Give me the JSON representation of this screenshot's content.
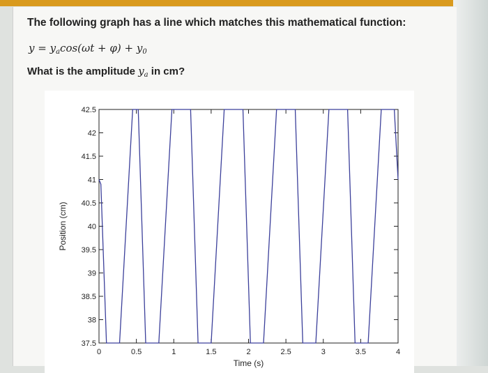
{
  "question": {
    "line1": "The following graph has a line which matches this mathematical function:",
    "formula": {
      "lhs": "y",
      "eq": " = ",
      "amp": "y",
      "amp_sub": "a",
      "rest": "cos(ωt + φ) + ",
      "off": "y",
      "off_sub": "0"
    },
    "ask_prefix": "What is the amplitude ",
    "ask_var": "y",
    "ask_var_sub": "a",
    "ask_suffix": " in cm?"
  },
  "colors": {
    "line": "#3b3f9a",
    "accent_bar": "#d99a1e"
  },
  "chart_data": {
    "type": "line",
    "xlabel": "Time (s)",
    "ylabel": "Position (cm)",
    "xlim": [
      0,
      4
    ],
    "ylim": [
      37.5,
      42.5
    ],
    "xticks": [
      0,
      0.5,
      1,
      1.5,
      2,
      2.5,
      3,
      3.5,
      4
    ],
    "xtick_labels": [
      "0",
      "0.5",
      "1",
      "1.5",
      "2",
      "2.5",
      "3",
      "3.5",
      "4"
    ],
    "yticks": [
      37.5,
      38,
      38.5,
      39,
      39.5,
      40,
      40.5,
      41,
      41.5,
      42,
      42.5
    ],
    "ytick_labels": [
      "37.5",
      "38",
      "38.5",
      "39",
      "39.5",
      "40",
      "40.5",
      "41",
      "41.5",
      "42",
      "42.5"
    ],
    "grid": false,
    "series": [
      {
        "x": [
          0,
          0.025,
          0.1,
          0.275,
          0.45,
          0.525,
          0.625,
          0.725,
          0.8,
          0.975,
          1.15,
          1.225,
          1.325,
          1.425,
          1.5,
          1.675,
          1.85,
          1.925,
          2.025,
          2.125,
          2.2,
          2.375,
          2.55,
          2.625,
          2.725,
          2.825,
          2.9,
          3.075,
          3.25,
          3.325,
          3.425,
          3.525,
          3.6,
          3.775,
          3.95,
          4.0
        ],
        "y": [
          41.0,
          40.9,
          37.5,
          37.5,
          42.5,
          42.5,
          37.5,
          37.5,
          37.5,
          42.5,
          42.5,
          42.5,
          37.5,
          37.5,
          37.5,
          42.5,
          42.5,
          42.5,
          37.5,
          37.5,
          37.5,
          42.5,
          42.5,
          42.5,
          37.5,
          37.5,
          37.5,
          42.5,
          42.5,
          42.5,
          37.5,
          37.5,
          37.5,
          42.5,
          42.5,
          41.0
        ]
      }
    ]
  }
}
